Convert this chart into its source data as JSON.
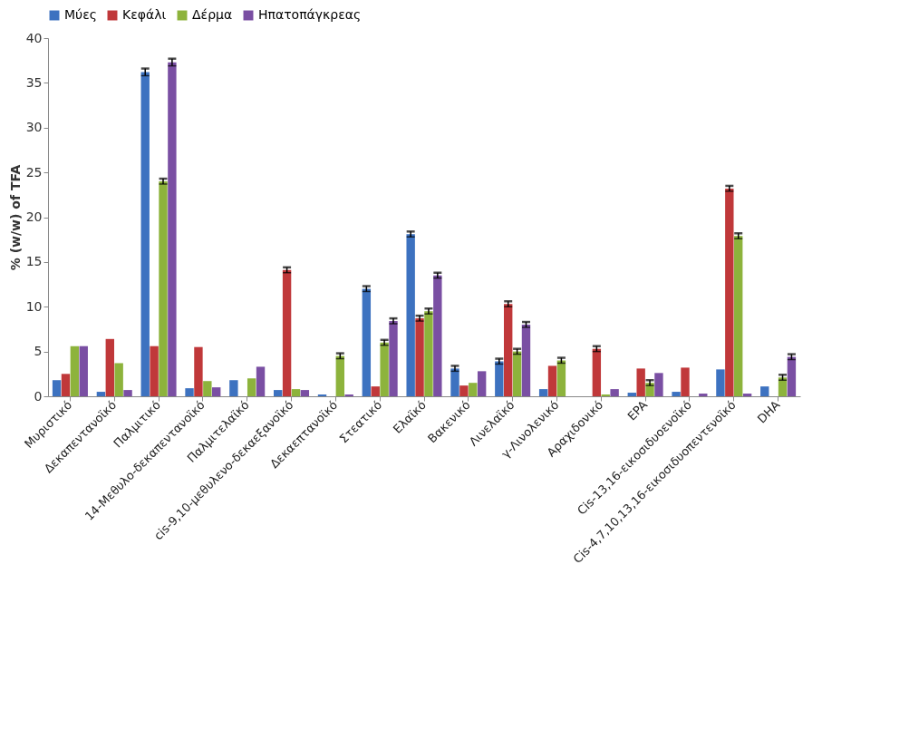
{
  "chart_data": {
    "type": "bar",
    "ylabel": "% (w/w) of TFA",
    "categories": [
      "Μυριστικό",
      "Δεκαπεντανοϊκό",
      "Παλμιτικό",
      "14-Μεθυλο-δεκαπεντανοϊκό",
      "Παλμιτελαϊκό",
      "cis-9,10-μεθυλενο-δεκαεξανοϊκό",
      "Δεκαεπτανοϊκό",
      "Στεατικό",
      "Ελαϊκό",
      "Βακενικό",
      "Λινελαϊκό",
      "γ-Λινολενικό",
      "Αραχιδονικό",
      "EPA",
      "Cis-13,16-εικοσιδυοενοϊκό",
      "Cis-4,7,10,13,16-εικοσιδυοπεντενοϊκό",
      "DHA"
    ],
    "series": [
      {
        "name": "Μύες",
        "color": "#3d72c0",
        "values": [
          1.8,
          0.5,
          36.2,
          0.9,
          1.8,
          0.7,
          0.2,
          12,
          18.1,
          3.1,
          3.9,
          0.8,
          0,
          0.4,
          0.5,
          3,
          1.1
        ],
        "errors": [
          null,
          null,
          0.4,
          null,
          null,
          null,
          null,
          0.3,
          0.3,
          0.3,
          0.3,
          null,
          null,
          null,
          null,
          null,
          null
        ]
      },
      {
        "name": "Κεφάλι",
        "color": "#c0383a",
        "values": [
          2.5,
          6.4,
          5.6,
          5.5,
          0,
          14.1,
          0,
          1.1,
          8.7,
          1.2,
          10.3,
          3.4,
          5.3,
          3.1,
          3.2,
          23.2,
          0
        ],
        "errors": [
          null,
          null,
          null,
          null,
          null,
          0.3,
          null,
          null,
          0.3,
          null,
          0.3,
          null,
          0.3,
          null,
          null,
          0.3,
          null
        ]
      },
      {
        "name": "Δέρμα",
        "color": "#8db33c",
        "values": [
          5.6,
          3.7,
          24,
          1.7,
          2,
          0.8,
          4.5,
          6,
          9.5,
          1.5,
          5,
          4,
          0.2,
          1.5,
          0,
          17.9,
          2.1
        ],
        "errors": [
          null,
          null,
          0.3,
          null,
          null,
          null,
          0.3,
          0.3,
          0.3,
          null,
          0.3,
          0.3,
          null,
          0.3,
          null,
          0.3,
          0.3
        ]
      },
      {
        "name": "Ηπατοπάγκρεας",
        "color": "#7a4fa3",
        "values": [
          5.6,
          0.7,
          37.3,
          1,
          3.3,
          0.7,
          0.2,
          8.4,
          13.5,
          2.8,
          8,
          0,
          0.8,
          2.6,
          0.3,
          0.3,
          4.4
        ],
        "errors": [
          null,
          null,
          0.4,
          null,
          null,
          null,
          null,
          0.3,
          0.3,
          null,
          0.3,
          null,
          null,
          null,
          null,
          null,
          0.3
        ]
      }
    ],
    "ylim": [
      0,
      40
    ],
    "yticks": [
      0,
      5,
      10,
      15,
      20,
      25,
      30,
      35,
      40
    ],
    "grid": false,
    "legend": "top"
  }
}
